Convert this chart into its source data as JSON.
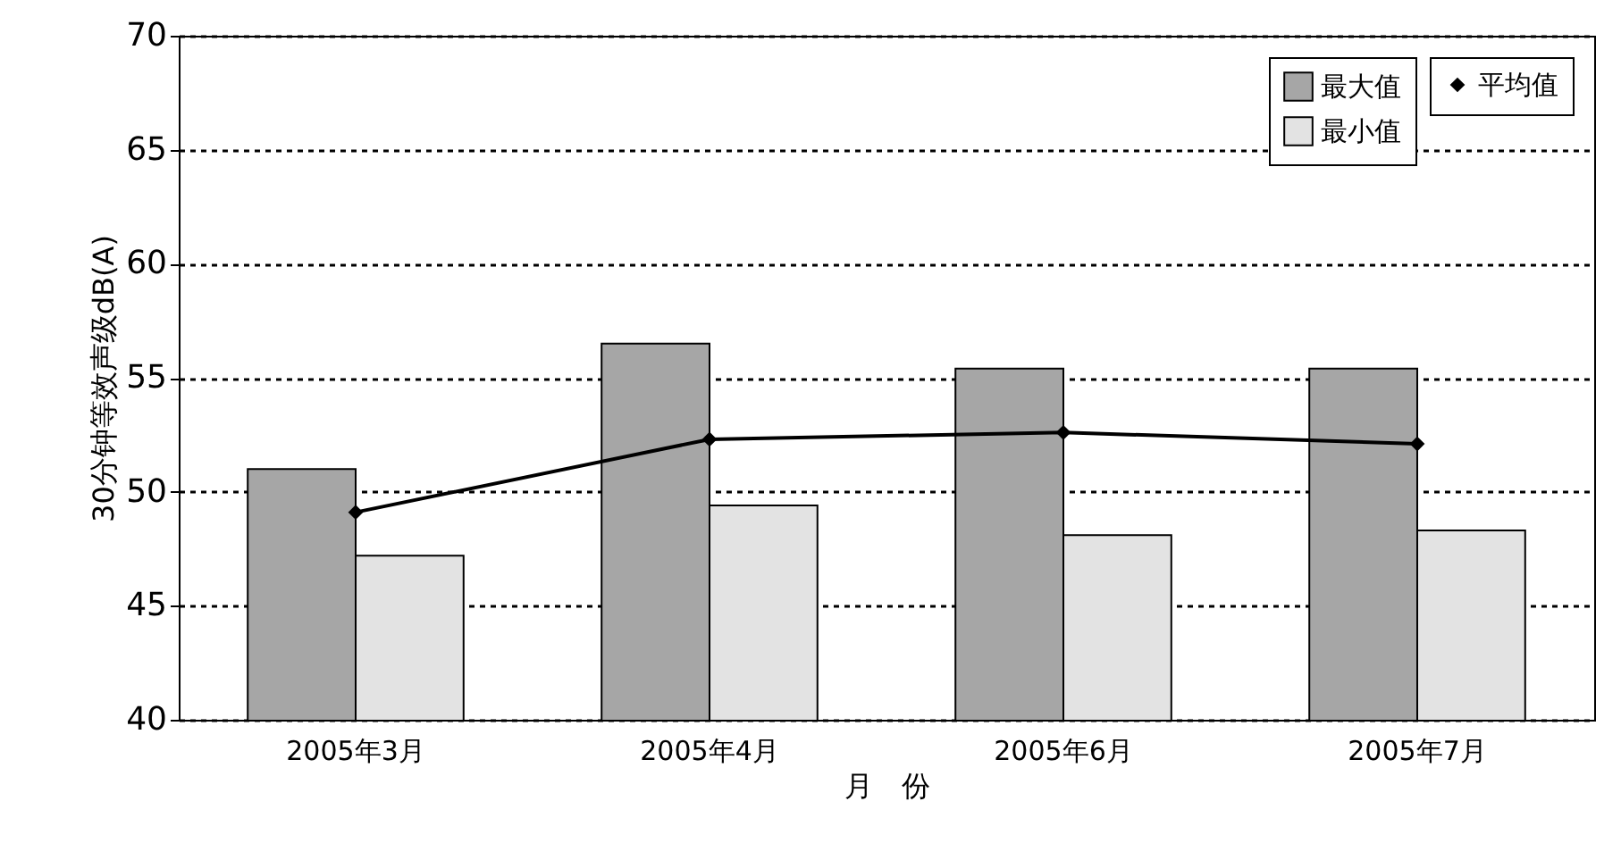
{
  "chart_data": {
    "type": "bar",
    "xlabel": "月　份",
    "ylabel": "30分钟等效声级dB(A)",
    "categories": [
      "2005年3月",
      "2005年4月",
      "2005年6月",
      "2005年7月"
    ],
    "series": [
      {
        "name": "最大值",
        "color": "#a6a6a6",
        "values": [
          51.0,
          56.5,
          55.4,
          55.4
        ]
      },
      {
        "name": "最小值",
        "color": "#e3e3e3",
        "values": [
          47.2,
          49.4,
          48.1,
          48.3
        ]
      },
      {
        "name": "平均值",
        "type": "line",
        "color": "#000000",
        "values": [
          49.1,
          52.3,
          52.6,
          52.1
        ]
      }
    ],
    "ylim": [
      40,
      70
    ],
    "yticks": [
      40,
      45,
      50,
      55,
      60,
      65,
      70
    ],
    "grid": "y",
    "legend": "top right",
    "marker": "diamond",
    "line_style": "solid"
  }
}
